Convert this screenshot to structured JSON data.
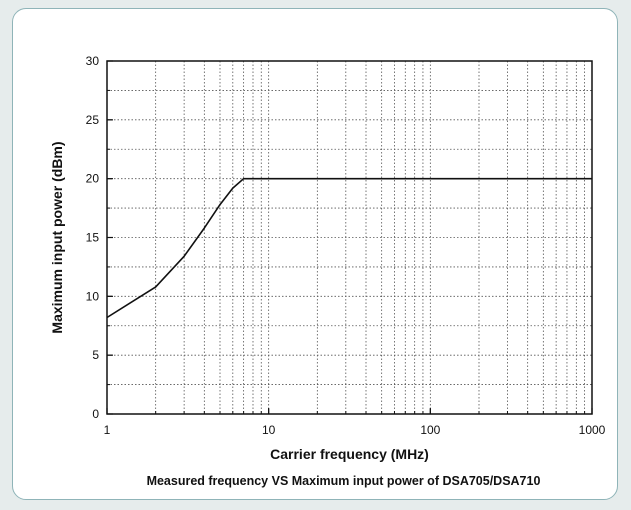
{
  "chart_data": {
    "type": "line",
    "title": "",
    "caption": "Measured frequency VS Maximum input power of DSA705/DSA710",
    "xlabel": "Carrier frequency (MHz)",
    "ylabel": "Maximum input power (dBm)",
    "xscale": "log",
    "xlim": [
      1,
      1000
    ],
    "ylim": [
      0,
      30
    ],
    "xticks": [
      1,
      10,
      100,
      1000
    ],
    "xtick_labels": [
      "1",
      "10",
      "100",
      "1000"
    ],
    "yticks": [
      0,
      5,
      10,
      15,
      20,
      25,
      30
    ],
    "ytick_labels": [
      "0",
      "5",
      "10",
      "15",
      "20",
      "25",
      "30"
    ],
    "grid": true,
    "legend": "none",
    "series": [
      {
        "color": "#111111",
        "x": [
          1,
          2,
          3,
          4,
          5,
          6,
          7,
          10,
          100,
          1000
        ],
        "y": [
          8.2,
          10.8,
          13.4,
          15.8,
          17.8,
          19.2,
          20,
          20,
          20,
          20
        ]
      }
    ]
  }
}
